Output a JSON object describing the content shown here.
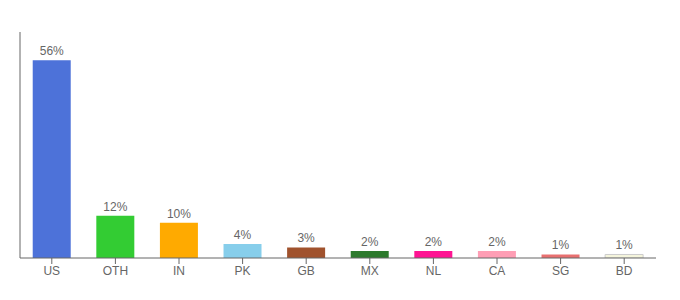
{
  "chart_data": {
    "type": "bar",
    "categories": [
      "US",
      "OTH",
      "IN",
      "PK",
      "GB",
      "MX",
      "NL",
      "CA",
      "SG",
      "BD"
    ],
    "values": [
      56,
      12,
      10,
      4,
      3,
      2,
      2,
      2,
      1,
      1
    ],
    "value_labels": [
      "56%",
      "12%",
      "10%",
      "4%",
      "3%",
      "2%",
      "2%",
      "2%",
      "1%",
      "1%"
    ],
    "colors": [
      "#4d72d9",
      "#33cc33",
      "#ffaa00",
      "#87ceeb",
      "#a0522d",
      "#2d7a2d",
      "#ff1493",
      "#ff9eb5",
      "#e87070",
      "#f5f5dc"
    ],
    "ylim": [
      0,
      64
    ],
    "grid": false,
    "data_labels": true,
    "tick_labels": "x"
  }
}
